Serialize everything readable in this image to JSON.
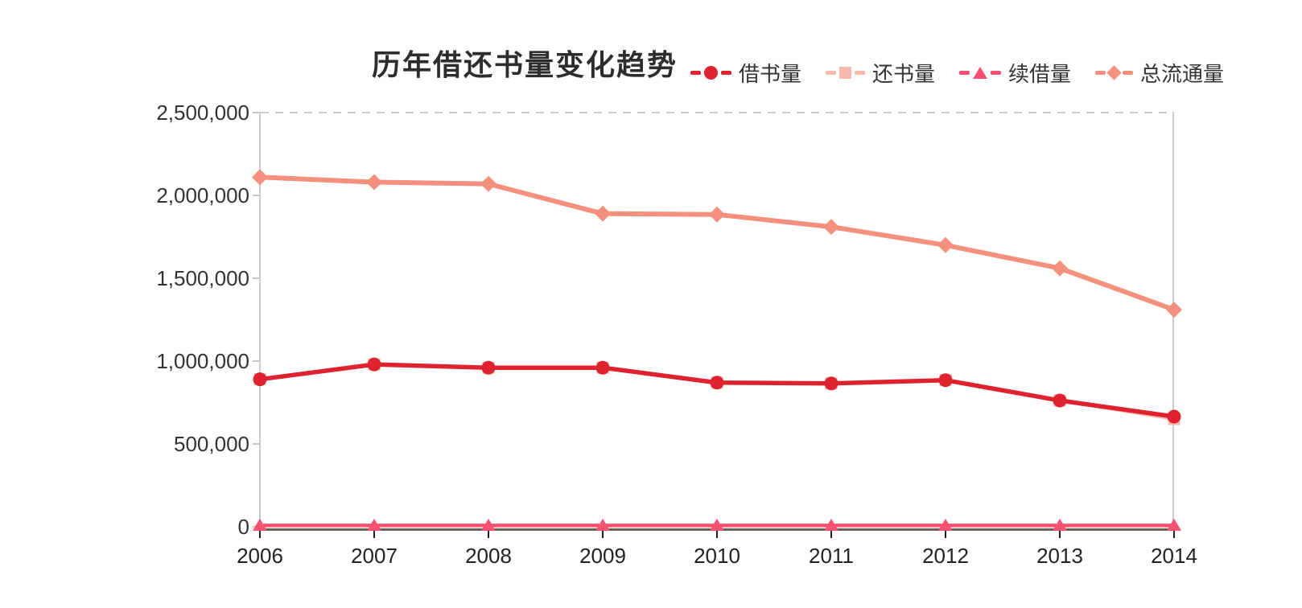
{
  "title": "历年借还书量变化趋势",
  "legend": {
    "items": [
      {
        "label": "借书量",
        "marker": "circle",
        "color": "#df2230"
      },
      {
        "label": "还书量",
        "marker": "square",
        "color": "#f7b8ad"
      },
      {
        "label": "续借量",
        "marker": "triangle",
        "color": "#f8506e"
      },
      {
        "label": "总流通量",
        "marker": "diamond",
        "color": "#f5907e"
      }
    ]
  },
  "axes": {
    "y_tick_labels": [
      "2,500,000",
      "2,000,000",
      "1,500,000",
      "1,000,000",
      "500,000",
      "0"
    ],
    "x_tick_labels": [
      "2006",
      "2007",
      "2008",
      "2009",
      "2010",
      "2011",
      "2012",
      "2013",
      "2014"
    ]
  },
  "chart_data": {
    "type": "line",
    "title": "历年借还书量变化趋势",
    "x": [
      2006,
      2007,
      2008,
      2009,
      2010,
      2011,
      2012,
      2013,
      2014
    ],
    "series": [
      {
        "name": "借书量",
        "marker": "circle",
        "color": "#df2230",
        "values": [
          890000,
          980000,
          960000,
          960000,
          870000,
          865000,
          885000,
          762000,
          665000
        ]
      },
      {
        "name": "还书量",
        "marker": "square",
        "color": "#f7b8ad",
        "values": [
          890000,
          980000,
          960000,
          960000,
          870000,
          865000,
          885000,
          762000,
          650000
        ],
        "note": "line coincides with 借书量 and is hidden behind it; square marker peeks out at 2014"
      },
      {
        "name": "续借量",
        "marker": "triangle",
        "color": "#f8506e",
        "values": [
          8000,
          8000,
          8000,
          8000,
          8000,
          8000,
          8000,
          8000,
          8000
        ]
      },
      {
        "name": "总流通量",
        "marker": "diamond",
        "color": "#f5907e",
        "values": [
          2110000,
          2080000,
          2070000,
          1890000,
          1885000,
          1810000,
          1700000,
          1560000,
          1310000
        ]
      }
    ],
    "ylim": [
      0,
      2500000
    ],
    "y_ticks": [
      0,
      500000,
      1000000,
      1500000,
      2000000,
      2500000
    ],
    "legend_position": "top-right",
    "grid": "dashed gridline at y=2,500,000 only"
  },
  "colors": {
    "series_red": "#df2230",
    "series_light_pink": "#f7b8ad",
    "series_rose": "#f8506e",
    "series_salmon": "#f5907e",
    "axis_line": "#cccccc",
    "x_axis_bar": "#6a6253",
    "text": "#222222"
  }
}
